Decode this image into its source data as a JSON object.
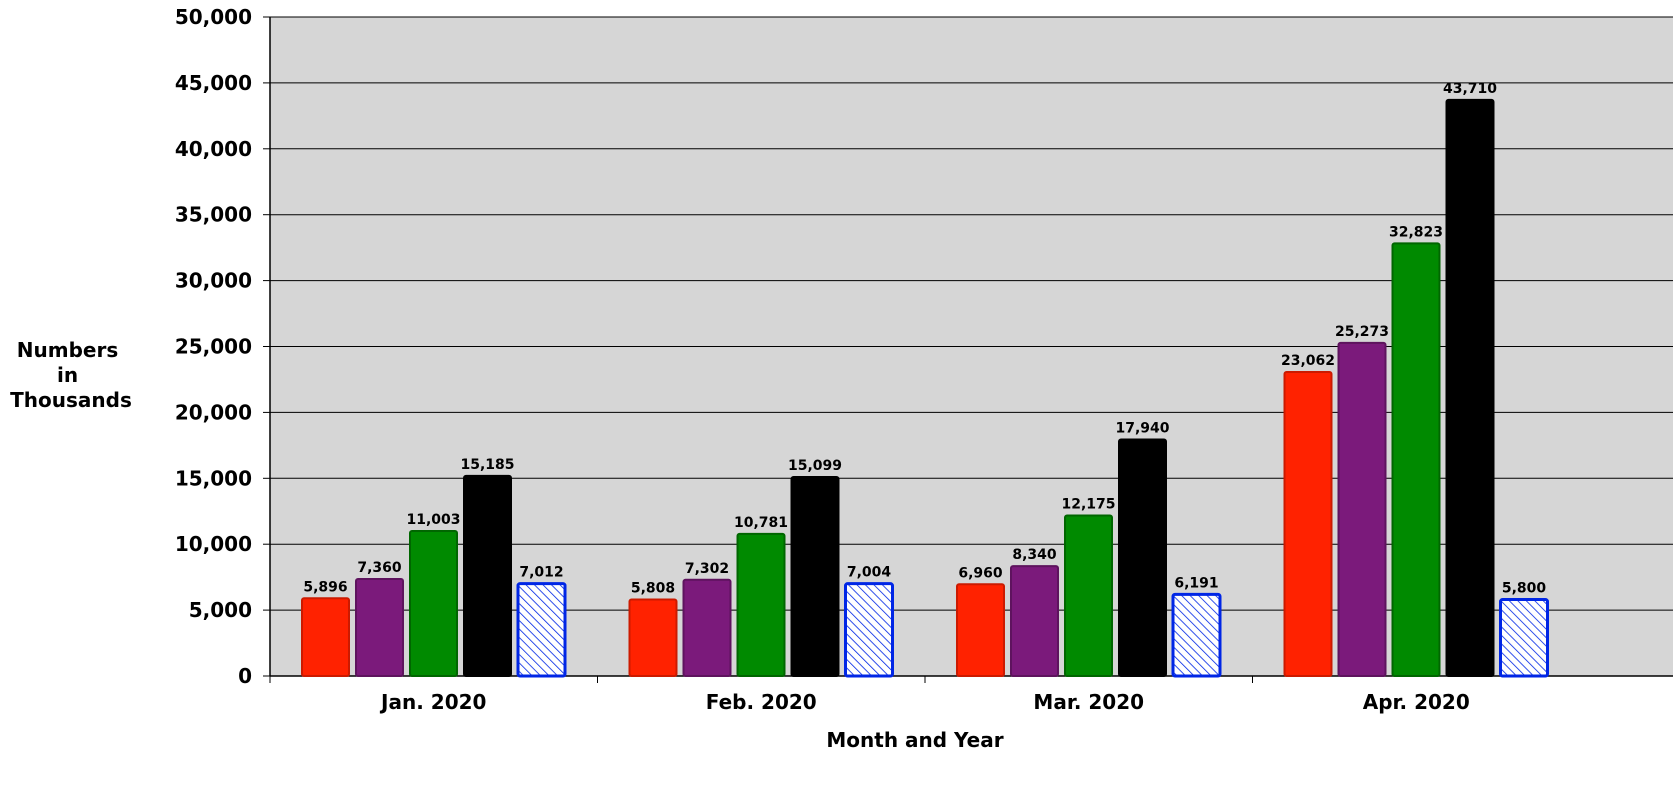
{
  "chart_data": {
    "type": "bar",
    "title": "",
    "xlabel": "Month and Year",
    "ylabel_lines": [
      "Numbers",
      "in",
      "Thousands"
    ],
    "ylim": [
      0,
      50000
    ],
    "yticks": [
      0,
      5000,
      10000,
      15000,
      20000,
      25000,
      30000,
      35000,
      40000,
      45000,
      50000
    ],
    "ytick_labels": [
      "0",
      "5,000",
      "10,000",
      "15,000",
      "20,000",
      "25,000",
      "30,000",
      "35,000",
      "40,000",
      "45,000",
      "50,000"
    ],
    "grid": true,
    "legend": "none",
    "plot_background": "#d6d6d6",
    "categories": [
      "Jan. 2020",
      "Feb. 2020",
      "Mar. 2020",
      "Apr. 2020"
    ],
    "series": [
      {
        "color": "#ff2200",
        "border": "#cc1a00",
        "values": [
          5896,
          5808,
          6960,
          23062
        ],
        "labels": [
          "5,896",
          "5,808",
          "6,960",
          "23,062"
        ]
      },
      {
        "color": "#7b1a7b",
        "border": "#5e135e",
        "values": [
          7360,
          7302,
          8340,
          25273
        ],
        "labels": [
          "7,360",
          "7,302",
          "8,340",
          "25,273"
        ]
      },
      {
        "color": "#008a00",
        "border": "#006600",
        "values": [
          11003,
          10781,
          12175,
          32823
        ],
        "labels": [
          "11,003",
          "10,781",
          "12,175",
          "32,823"
        ]
      },
      {
        "color": "#000000",
        "border": "#000000",
        "values": [
          15185,
          15099,
          17940,
          43710
        ],
        "labels": [
          "15,185",
          "15,099",
          "17,940",
          "43,710"
        ]
      },
      {
        "color": "#ffffff",
        "border": "#0026e6",
        "pattern": "hatch",
        "values": [
          7012,
          7004,
          6191,
          5800
        ],
        "labels": [
          "7,012",
          "7,004",
          "6,191",
          "5,800"
        ]
      }
    ]
  }
}
